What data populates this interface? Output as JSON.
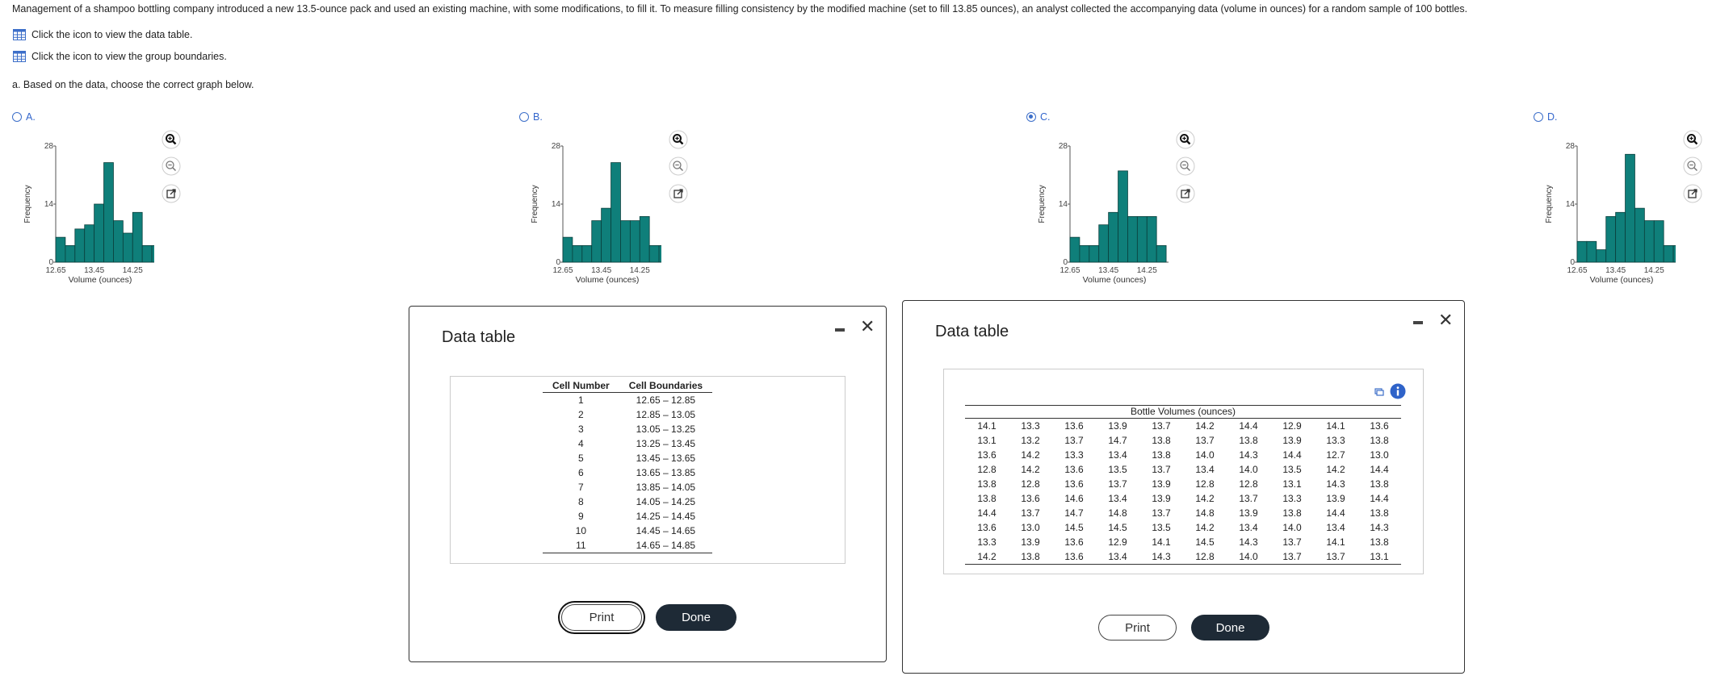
{
  "intro": "Management of a shampoo bottling company introduced a new 13.5-ounce pack and used an existing machine, with some modifications, to fill it. To measure filling consistency by the modified machine (set to fill 13.85 ounces), an analyst collected the accompanying data (volume in ounces) for a random sample of 100 bottles.",
  "links": {
    "data_table": "Click the icon to view the data table.",
    "group_boundaries": "Click the icon to view the group boundaries."
  },
  "question": "a. Based on the data, choose the correct graph below.",
  "options": [
    {
      "label": "A.",
      "selected": false
    },
    {
      "label": "B.",
      "selected": false
    },
    {
      "label": "C.",
      "selected": true
    },
    {
      "label": "D.",
      "selected": false
    }
  ],
  "charts_common": {
    "ylabel": "Frequency",
    "xlabel": "Volume (ounces)",
    "yticks": [
      "0",
      "14",
      "28"
    ],
    "xticks": [
      "12.65",
      "13.45",
      "14.25"
    ],
    "bar_color": "#0f7f7a"
  },
  "chart_data": [
    {
      "type": "bar",
      "xlabel": "Volume (ounces)",
      "ylabel": "Frequency",
      "ylim": [
        0,
        28
      ],
      "values": [
        6,
        4,
        8,
        9,
        14,
        24,
        10,
        7,
        12,
        4,
        4
      ]
    },
    {
      "type": "bar",
      "xlabel": "Volume (ounces)",
      "ylabel": "Frequency",
      "ylim": [
        0,
        28
      ],
      "values": [
        6,
        4,
        4,
        10,
        13,
        24,
        10,
        10,
        11,
        4,
        4
      ]
    },
    {
      "type": "bar",
      "xlabel": "Volume (ounces)",
      "ylabel": "Frequency",
      "ylim": [
        0,
        28
      ],
      "values": [
        6,
        4,
        4,
        9,
        12,
        22,
        11,
        11,
        11,
        4,
        0
      ]
    },
    {
      "type": "bar",
      "xlabel": "Volume (ounces)",
      "ylabel": "Frequency",
      "ylim": [
        0,
        28
      ],
      "values": [
        5,
        5,
        3,
        11,
        12,
        26,
        13,
        10,
        10,
        4,
        4
      ]
    }
  ],
  "dialog1": {
    "title": "Data table",
    "headers": [
      "Cell Number",
      "Cell Boundaries"
    ],
    "rows": [
      [
        "1",
        "12.65 – 12.85"
      ],
      [
        "2",
        "12.85 – 13.05"
      ],
      [
        "3",
        "13.05 – 13.25"
      ],
      [
        "4",
        "13.25 – 13.45"
      ],
      [
        "5",
        "13.45 – 13.65"
      ],
      [
        "6",
        "13.65 – 13.85"
      ],
      [
        "7",
        "13.85 – 14.05"
      ],
      [
        "8",
        "14.05 – 14.25"
      ],
      [
        "9",
        "14.25 – 14.45"
      ],
      [
        "10",
        "14.45 – 14.65"
      ],
      [
        "11",
        "14.65 – 14.85"
      ]
    ],
    "print": "Print",
    "done": "Done"
  },
  "dialog2": {
    "title": "Data table",
    "caption": "Bottle Volumes (ounces)",
    "rows": [
      [
        "14.1",
        "13.3",
        "13.6",
        "13.9",
        "13.7",
        "14.2",
        "14.4",
        "12.9",
        "14.1",
        "13.6"
      ],
      [
        "13.1",
        "13.2",
        "13.7",
        "14.7",
        "13.8",
        "13.7",
        "13.8",
        "13.9",
        "13.3",
        "13.8"
      ],
      [
        "13.6",
        "14.2",
        "13.3",
        "13.4",
        "13.8",
        "14.0",
        "14.3",
        "14.4",
        "12.7",
        "13.0"
      ],
      [
        "12.8",
        "14.2",
        "13.6",
        "13.5",
        "13.7",
        "13.4",
        "14.0",
        "13.5",
        "14.2",
        "14.4"
      ],
      [
        "13.8",
        "12.8",
        "13.6",
        "13.7",
        "13.9",
        "12.8",
        "12.8",
        "13.1",
        "14.3",
        "13.8"
      ],
      [
        "13.8",
        "13.6",
        "14.6",
        "13.4",
        "13.9",
        "14.2",
        "13.7",
        "13.3",
        "13.9",
        "14.4"
      ],
      [
        "14.4",
        "13.7",
        "14.7",
        "14.8",
        "13.7",
        "14.8",
        "13.9",
        "13.8",
        "14.4",
        "13.8"
      ],
      [
        "13.6",
        "13.0",
        "14.5",
        "14.5",
        "13.5",
        "14.2",
        "13.4",
        "14.0",
        "13.4",
        "14.3"
      ],
      [
        "13.3",
        "13.9",
        "13.6",
        "12.9",
        "14.1",
        "14.5",
        "14.3",
        "13.7",
        "14.1",
        "13.8"
      ],
      [
        "14.2",
        "13.8",
        "13.6",
        "13.4",
        "14.3",
        "12.8",
        "14.0",
        "13.7",
        "13.7",
        "13.1"
      ]
    ],
    "print": "Print",
    "done": "Done"
  }
}
